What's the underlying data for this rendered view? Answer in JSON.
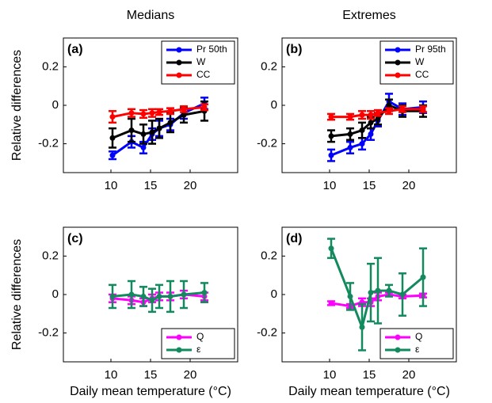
{
  "chart_data": [
    {
      "type": "line",
      "title": "Medians",
      "panel_label": "(a)",
      "ylabel": "Relative differences",
      "xlim": [
        4,
        26
      ],
      "xticks": [
        10,
        15,
        20
      ],
      "ylim": [
        -0.35,
        0.35
      ],
      "yticks": [
        -0.2,
        0,
        0.2
      ],
      "legend": "upper right",
      "x": [
        10.2,
        12.6,
        14.1,
        15.2,
        16.1,
        17.5,
        19.2,
        21.8
      ],
      "series": [
        {
          "name": "Pr 50th",
          "color": "#0000ff",
          "values": [
            -0.26,
            -0.19,
            -0.22,
            -0.15,
            -0.12,
            -0.1,
            -0.04,
            0.01
          ],
          "errors": [
            0.02,
            0.03,
            0.03,
            0.03,
            0.04,
            0.03,
            0.03,
            0.03
          ]
        },
        {
          "name": "W",
          "color": "#000000",
          "values": [
            -0.17,
            -0.13,
            -0.15,
            -0.14,
            -0.12,
            -0.09,
            -0.05,
            -0.03
          ],
          "errors": [
            0.05,
            0.06,
            0.05,
            0.06,
            0.05,
            0.05,
            0.04,
            0.05
          ]
        },
        {
          "name": "CC",
          "color": "#ff0000",
          "values": [
            -0.06,
            -0.04,
            -0.045,
            -0.04,
            -0.035,
            -0.03,
            -0.02,
            -0.01
          ],
          "errors": [
            0.03,
            0.02,
            0.02,
            0.02,
            0.015,
            0.015,
            0.015,
            0.015
          ]
        }
      ]
    },
    {
      "type": "line",
      "title": "Extremes",
      "panel_label": "(b)",
      "xlim": [
        4,
        26
      ],
      "xticks": [
        10,
        15,
        20
      ],
      "ylim": [
        -0.35,
        0.35
      ],
      "yticks": [
        -0.2,
        0,
        0.2
      ],
      "legend": "upper right",
      "x": [
        10.2,
        12.6,
        14.1,
        15.2,
        16.1,
        17.5,
        19.2,
        21.8
      ],
      "series": [
        {
          "name": "Pr 95th",
          "color": "#0000ff",
          "values": [
            -0.26,
            -0.22,
            -0.2,
            -0.15,
            -0.08,
            0.02,
            -0.02,
            -0.01
          ],
          "errors": [
            0.03,
            0.03,
            0.03,
            0.03,
            0.03,
            0.04,
            0.03,
            0.03
          ]
        },
        {
          "name": "W",
          "color": "#000000",
          "values": [
            -0.16,
            -0.15,
            -0.13,
            -0.09,
            -0.07,
            0,
            -0.03,
            -0.03
          ],
          "errors": [
            0.03,
            0.03,
            0.04,
            0.03,
            0.03,
            0.03,
            0.03,
            0.03
          ]
        },
        {
          "name": "CC",
          "color": "#ff0000",
          "values": [
            -0.06,
            -0.06,
            -0.05,
            -0.05,
            -0.04,
            -0.03,
            -0.02,
            -0.02
          ],
          "errors": [
            0.015,
            0.015,
            0.02,
            0.02,
            0.015,
            0.015,
            0.015,
            0.015
          ]
        }
      ]
    },
    {
      "type": "line",
      "panel_label": "(c)",
      "ylabel": "Relative differences",
      "xlabel": "Daily mean temperature (°C)",
      "xlim": [
        4,
        26
      ],
      "xticks": [
        10,
        15,
        20
      ],
      "ylim": [
        -0.35,
        0.35
      ],
      "yticks": [
        -0.2,
        0,
        0.2
      ],
      "legend": "lower right",
      "x": [
        10.2,
        12.6,
        14.1,
        15.2,
        16.1,
        17.5,
        19.2,
        21.8
      ],
      "series": [
        {
          "name": "Q",
          "color": "#ff00ff",
          "values": [
            -0.02,
            -0.03,
            -0.04,
            -0.02,
            -0.01,
            -0.01,
            0,
            -0.01
          ],
          "errors": [
            0.02,
            0.02,
            0.02,
            0.02,
            0.02,
            0.02,
            0.02,
            0.02
          ]
        },
        {
          "name": "ε",
          "color": "#138a5e",
          "values": [
            -0.01,
            0,
            -0.01,
            -0.03,
            -0.01,
            -0.01,
            0,
            0.01
          ],
          "errors": [
            0.06,
            0.07,
            0.05,
            0.06,
            0.06,
            0.08,
            0.07,
            0.05
          ]
        }
      ]
    },
    {
      "type": "line",
      "panel_label": "(d)",
      "xlabel": "Daily mean temperature (°C)",
      "xlim": [
        4,
        26
      ],
      "xticks": [
        10,
        15,
        20
      ],
      "ylim": [
        -0.35,
        0.35
      ],
      "yticks": [
        -0.2,
        0,
        0.2
      ],
      "legend": "lower right",
      "x": [
        10.2,
        12.6,
        14.1,
        15.2,
        16.1,
        17.5,
        19.2,
        21.8
      ],
      "series": [
        {
          "name": "Q",
          "color": "#ff00ff",
          "values": [
            -0.045,
            -0.06,
            -0.04,
            -0.04,
            -0.01,
            0,
            -0.01,
            -0.005
          ],
          "errors": [
            0.01,
            0.01,
            0.02,
            0.02,
            0.02,
            0.01,
            0.01,
            0.01
          ]
        },
        {
          "name": "ε",
          "color": "#138a5e",
          "values": [
            0.24,
            -0.01,
            -0.17,
            0.01,
            0.02,
            0.02,
            0,
            0.09
          ],
          "errors": [
            0.05,
            0.07,
            0.12,
            0.15,
            0.17,
            0.03,
            0.11,
            0.15
          ]
        }
      ]
    }
  ]
}
